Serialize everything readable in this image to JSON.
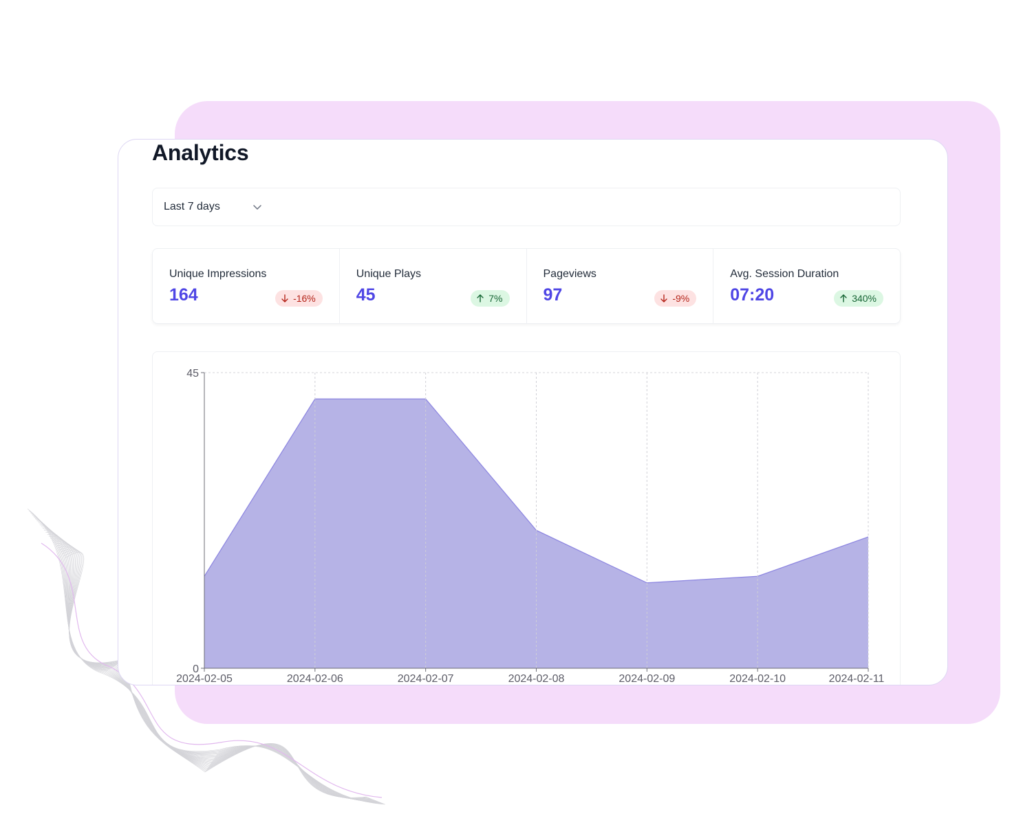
{
  "page": {
    "title": "Analytics"
  },
  "filter": {
    "selected": "Last 7 days"
  },
  "stats": [
    {
      "label": "Unique Impressions",
      "value": "164",
      "change": "-16%",
      "direction": "down"
    },
    {
      "label": "Unique Plays",
      "value": "45",
      "change": "7%",
      "direction": "up"
    },
    {
      "label": "Pageviews",
      "value": "97",
      "change": "-9%",
      "direction": "down"
    },
    {
      "label": "Avg. Session Duration",
      "value": "07:20",
      "change": "340%",
      "direction": "up"
    }
  ],
  "colors": {
    "accent": "#4f46e5",
    "area_fill": "#b6b3e6",
    "area_stroke": "#8b84e0",
    "badge_down_bg": "#fde2e2",
    "badge_up_bg": "#dcf7e3",
    "backdrop": "#f5dcfa"
  },
  "icons": {
    "dropdown": "chevron-down-icon",
    "down": "arrow-down-icon",
    "up": "arrow-up-icon"
  },
  "chart_data": {
    "type": "area",
    "x": [
      "2024-02-05",
      "2024-02-06",
      "2024-02-07",
      "2024-02-08",
      "2024-02-09",
      "2024-02-10",
      "2024-02-11"
    ],
    "series": [
      {
        "values": [
          14,
          41,
          41,
          21,
          13,
          14,
          20
        ]
      }
    ],
    "ylim": [
      0,
      45
    ],
    "yticks": [
      "0",
      "45"
    ],
    "grid": "dashed",
    "title": "",
    "xlabel": "",
    "ylabel": ""
  }
}
